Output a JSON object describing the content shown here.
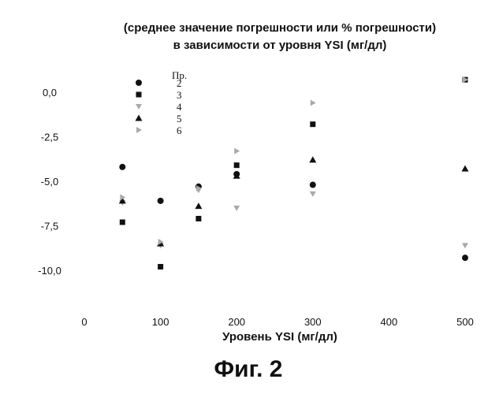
{
  "chart_data": {
    "type": "scatter",
    "title": [
      "(среднее значение погрешности или % погрешности)",
      "в зависимости от уровня YSI (мг/дл)"
    ],
    "xlabel": "Уровень YSI (мг/дл)",
    "ylabel": "",
    "xlim": [
      0,
      500
    ],
    "ylim": [
      -10,
      0
    ],
    "x_ticks": [
      "0",
      "100",
      "200",
      "300",
      "400",
      "500"
    ],
    "y_ticks": [
      "0,0",
      "-2,5",
      "-5,0",
      "-7,5",
      "-10,0"
    ],
    "grid": false,
    "legend_title": "Пр.",
    "legend_position": "top-left",
    "series": [
      {
        "name": "2",
        "marker": "circle",
        "color": "#111111",
        "points": [
          [
            50,
            -4.2
          ],
          [
            100,
            -6.1
          ],
          [
            150,
            -5.3
          ],
          [
            200,
            -4.6
          ],
          [
            300,
            -5.2
          ],
          [
            500,
            -9.3
          ]
        ]
      },
      {
        "name": "3",
        "marker": "square",
        "color": "#111111",
        "points": [
          [
            50,
            -7.3
          ],
          [
            100,
            -9.8
          ],
          [
            150,
            -7.1
          ],
          [
            200,
            -4.1
          ],
          [
            300,
            -1.8
          ],
          [
            500,
            0.7
          ]
        ]
      },
      {
        "name": "4",
        "marker": "triangle-down",
        "color": "#aaaaaa",
        "points": [
          [
            50,
            -6.2
          ],
          [
            100,
            -8.6
          ],
          [
            150,
            -5.5
          ],
          [
            200,
            -6.5
          ],
          [
            300,
            -5.7
          ],
          [
            500,
            -8.6
          ]
        ]
      },
      {
        "name": "5",
        "marker": "triangle-up",
        "color": "#111111",
        "points": [
          [
            50,
            -6.1
          ],
          [
            100,
            -8.5
          ],
          [
            150,
            -6.4
          ],
          [
            200,
            -4.7
          ],
          [
            300,
            -3.8
          ],
          [
            500,
            -4.3
          ]
        ]
      },
      {
        "name": "6",
        "marker": "triangle-right",
        "color": "#aaaaaa",
        "points": [
          [
            50,
            -5.9
          ],
          [
            100,
            -8.4
          ],
          [
            150,
            -5.4
          ],
          [
            200,
            -3.3
          ],
          [
            300,
            -0.6
          ],
          [
            500,
            0.7
          ]
        ]
      }
    ]
  },
  "figure_caption": "Фиг. 2"
}
